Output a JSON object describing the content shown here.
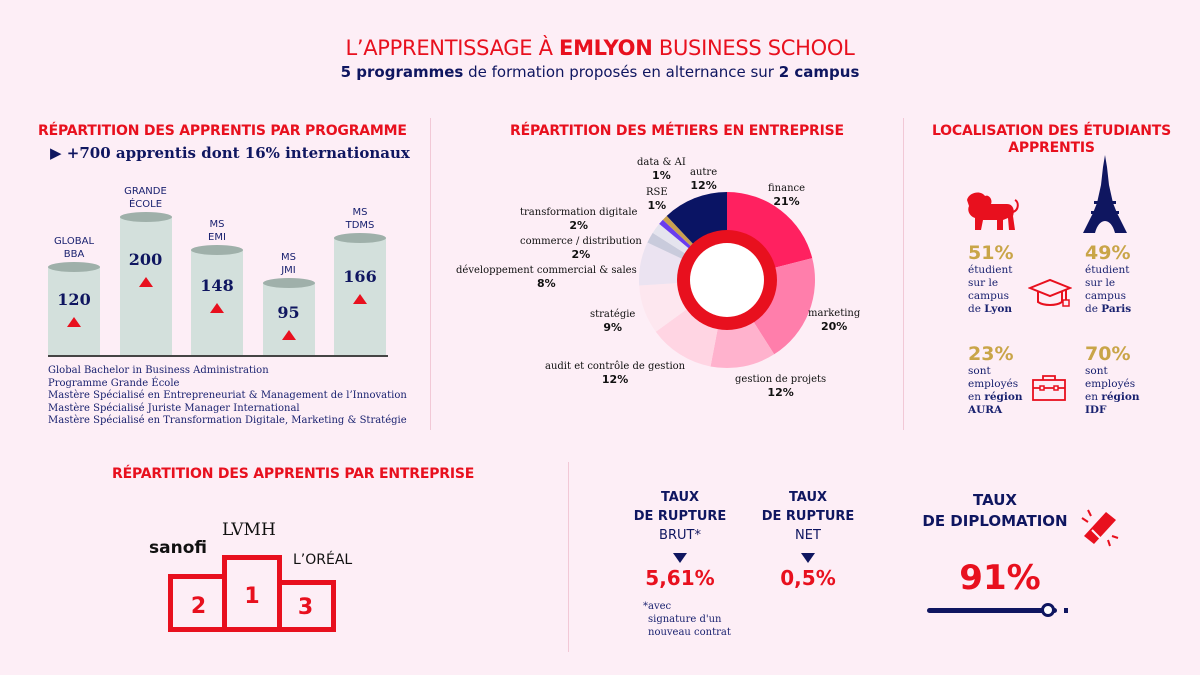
{
  "header": {
    "title_pre": "L’APPRENTISSAGE À ",
    "title_brand": "EMLYON",
    "title_post": " BUSINESS SCHOOL",
    "subtitle_b1": "5 programmes",
    "subtitle_mid": " de formation proposés en alternance sur ",
    "subtitle_b2": "2 campus"
  },
  "programmes": {
    "title": "RÉPARTITION DES APPRENTIS PAR PROGRAMME",
    "highlight": "+700 apprentis dont 16% internationaux",
    "legend": [
      "Global Bachelor in Business Administration",
      "Programme Grande École",
      "Mastère Spécialisé en Entrepreneuriat & Management de l’Innovation",
      "Mastère Spécialisé Juriste Manager International",
      "Mastère Spécialisé en Transformation Digitale, Marketing & Stratégie"
    ]
  },
  "metiers": {
    "title": "RÉPARTITION DES MÉTIERS EN ENTREPRISE"
  },
  "chart_data": [
    {
      "type": "bar",
      "categories": [
        "GLOBAL BBA",
        "GRANDE ÉCOLE",
        "MS EMI",
        "MS JMI",
        "MS TDMS"
      ],
      "category_lines": [
        [
          "GLOBAL",
          "BBA"
        ],
        [
          "GRANDE",
          "ÉCOLE"
        ],
        [
          "MS",
          "EMI"
        ],
        [
          "MS",
          "JMI"
        ],
        [
          "MS",
          "TDMS"
        ]
      ],
      "values": [
        120,
        200,
        148,
        95,
        166
      ],
      "value_labels": [
        "120",
        "200",
        "148",
        "95",
        "166"
      ]
    },
    {
      "type": "pie",
      "donut": true,
      "start": "top",
      "direction": "clockwise",
      "labels": [
        "finance",
        "marketing",
        "gestion de projets",
        "audit et contrôle de gestion",
        "stratégie",
        "développement commercial & sales",
        "commerce / distribution",
        "transformation digitale",
        "RSE",
        "data & AI",
        "autre"
      ],
      "values": [
        21,
        20,
        12,
        12,
        9,
        8,
        2,
        2,
        1,
        1,
        12
      ],
      "value_labels": [
        "21%",
        "20%",
        "12%",
        "12%",
        "9%",
        "8%",
        "2%",
        "2%",
        "1%",
        "1%",
        "12%"
      ],
      "colors": [
        "#ff2160",
        "#ff7eab",
        "#ffb2cd",
        "#ffd5e3",
        "#fde7ef",
        "#ebe3f1",
        "#c9cbdc",
        "#e5e4ee",
        "#6a3cf0",
        "#c8a050",
        "#0a1464"
      ]
    }
  ],
  "localisation": {
    "title1": "LOCALISATION DES ÉTUDIANTS",
    "title2": "APPRENTIS",
    "lyon": {
      "pct": "51%",
      "l1": "étudient",
      "l2": "sur le",
      "l3": "campus",
      "l4a": "de ",
      "l4b": "Lyon"
    },
    "paris": {
      "pct": "49%",
      "l1": "étudient",
      "l2": "sur le",
      "l3": "campus",
      "l4a": "de ",
      "l4b": "Paris"
    },
    "aura": {
      "pct": "23%",
      "l1": "sont",
      "l2": "employés",
      "l3a": "en ",
      "l3b": "région",
      "l4": "AURA"
    },
    "idf": {
      "pct": "70%",
      "l1": "sont",
      "l2": "employés",
      "l3a": "en ",
      "l3b": "région",
      "l4": "IDF"
    },
    "icons": [
      "lion-icon",
      "eiffel-tower-icon",
      "graduation-cap-icon",
      "briefcase-icon"
    ]
  },
  "entreprises": {
    "title": "RÉPARTITION DES APPRENTIS PAR ENTREPRISE",
    "first": "LVMH",
    "second": "sanofi",
    "third": "L’ORÉAL",
    "ranks": [
      "1",
      "2",
      "3"
    ]
  },
  "rupture_brut": {
    "l1": "TAUX",
    "l2": "DE RUPTURE",
    "l3": "BRUT*",
    "value": "5,61%",
    "note1": "*avec",
    "note2": "signature d'un",
    "note3": "nouveau contrat"
  },
  "rupture_net": {
    "l1": "TAUX",
    "l2": "DE RUPTURE",
    "l3": "NET",
    "value": "0,5%"
  },
  "diplomation": {
    "l1": "TAUX",
    "l2": "DE DIPLOMATION",
    "value": "91%",
    "level_percent": 91
  },
  "colors": {
    "red": "#e8101e",
    "navy": "#0f1660",
    "gold": "#c9a548",
    "background": "#fdeef6"
  }
}
